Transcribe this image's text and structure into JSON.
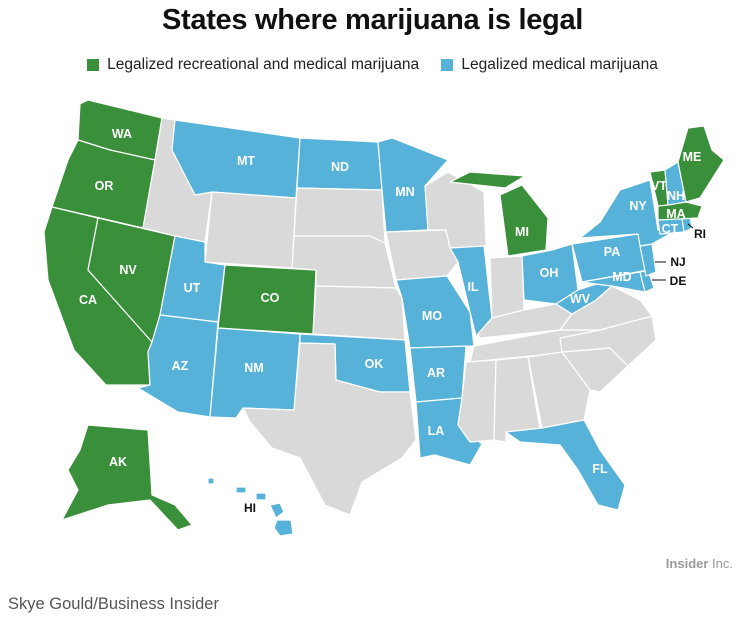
{
  "title": "States where marijuana is legal",
  "legend": {
    "recreational": {
      "label": "Legalized recreational and medical marijuana",
      "color": "#3a8f3a"
    },
    "medical": {
      "label": "Legalized medical marijuana",
      "color": "#56b2d8"
    }
  },
  "colors": {
    "none": "#d9d9d9",
    "border": "#ffffff"
  },
  "states": {
    "WA": {
      "status": "recreational"
    },
    "OR": {
      "status": "recreational"
    },
    "CA": {
      "status": "recreational"
    },
    "NV": {
      "status": "recreational"
    },
    "CO": {
      "status": "recreational"
    },
    "AK": {
      "status": "recreational"
    },
    "MI": {
      "status": "recreational"
    },
    "ME": {
      "status": "recreational"
    },
    "VT": {
      "status": "recreational"
    },
    "MA": {
      "status": "recreational"
    },
    "MT": {
      "status": "medical"
    },
    "ND": {
      "status": "medical"
    },
    "MN": {
      "status": "medical"
    },
    "UT": {
      "status": "medical"
    },
    "AZ": {
      "status": "medical"
    },
    "NM": {
      "status": "medical"
    },
    "OK": {
      "status": "medical"
    },
    "AR": {
      "status": "medical"
    },
    "LA": {
      "status": "medical"
    },
    "MO": {
      "status": "medical"
    },
    "IL": {
      "status": "medical"
    },
    "OH": {
      "status": "medical"
    },
    "WV": {
      "status": "medical"
    },
    "PA": {
      "status": "medical"
    },
    "NY": {
      "status": "medical"
    },
    "NH": {
      "status": "medical"
    },
    "CT": {
      "status": "medical"
    },
    "RI": {
      "status": "medical"
    },
    "NJ": {
      "status": "medical"
    },
    "DE": {
      "status": "medical"
    },
    "MD": {
      "status": "medical"
    },
    "FL": {
      "status": "medical"
    },
    "HI": {
      "status": "medical"
    },
    "ID": {
      "status": "none"
    },
    "WY": {
      "status": "none"
    },
    "SD": {
      "status": "none"
    },
    "NE": {
      "status": "none"
    },
    "KS": {
      "status": "none"
    },
    "TX": {
      "status": "none"
    },
    "IA": {
      "status": "none"
    },
    "WI": {
      "status": "none"
    },
    "IN": {
      "status": "none"
    },
    "KY": {
      "status": "none"
    },
    "TN": {
      "status": "none"
    },
    "MS": {
      "status": "none"
    },
    "AL": {
      "status": "none"
    },
    "GA": {
      "status": "none"
    },
    "SC": {
      "status": "none"
    },
    "NC": {
      "status": "none"
    },
    "VA": {
      "status": "none"
    }
  },
  "labels": [
    "WA",
    "OR",
    "CA",
    "NV",
    "CO",
    "AK",
    "MI",
    "ME",
    "VT",
    "MA",
    "MT",
    "ND",
    "MN",
    "UT",
    "AZ",
    "NM",
    "OK",
    "AR",
    "LA",
    "MO",
    "IL",
    "OH",
    "WV",
    "PA",
    "NY",
    "NH",
    "CT",
    "RI",
    "NJ",
    "DE",
    "MD",
    "FL",
    "HI"
  ],
  "brand": {
    "name": "Insider",
    "suffix": " Inc."
  },
  "credit": "Skye Gould/Business Insider"
}
